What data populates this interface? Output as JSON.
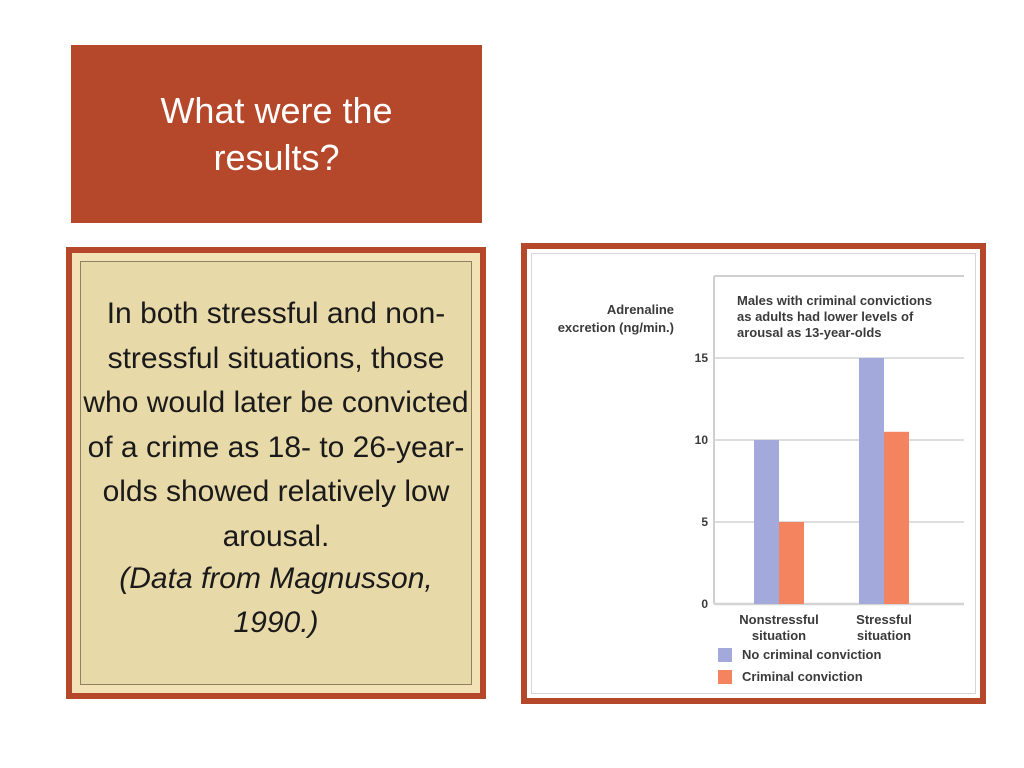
{
  "title": "What were the results?",
  "summary": {
    "text": "In both stressful and non-stressful situations, those who would later be convicted of a crime as 18- to 26-year-olds showed relatively low arousal.",
    "citation": "(Data from Magnusson, 1990.)"
  },
  "colors": {
    "accent": "#b5482a",
    "panel": "#e8d9a8",
    "no_conviction": "#a3aadb",
    "conviction": "#f4845f"
  },
  "chart_data": {
    "type": "bar",
    "title": "Males with criminal convictions as adults had lower levels of arousal as 13-year-olds",
    "ylabel": "Adrenaline excretion (ng/min.)",
    "xlabel": "",
    "categories": [
      "Nonstressful situation",
      "Stressful situation"
    ],
    "series": [
      {
        "name": "No criminal conviction",
        "values": [
          10,
          15
        ]
      },
      {
        "name": "Criminal conviction",
        "values": [
          5,
          10.5
        ]
      }
    ],
    "ylim": [
      0,
      15
    ],
    "yticks": [
      0,
      5,
      10,
      15
    ],
    "grid": true,
    "legend": "bottom"
  }
}
